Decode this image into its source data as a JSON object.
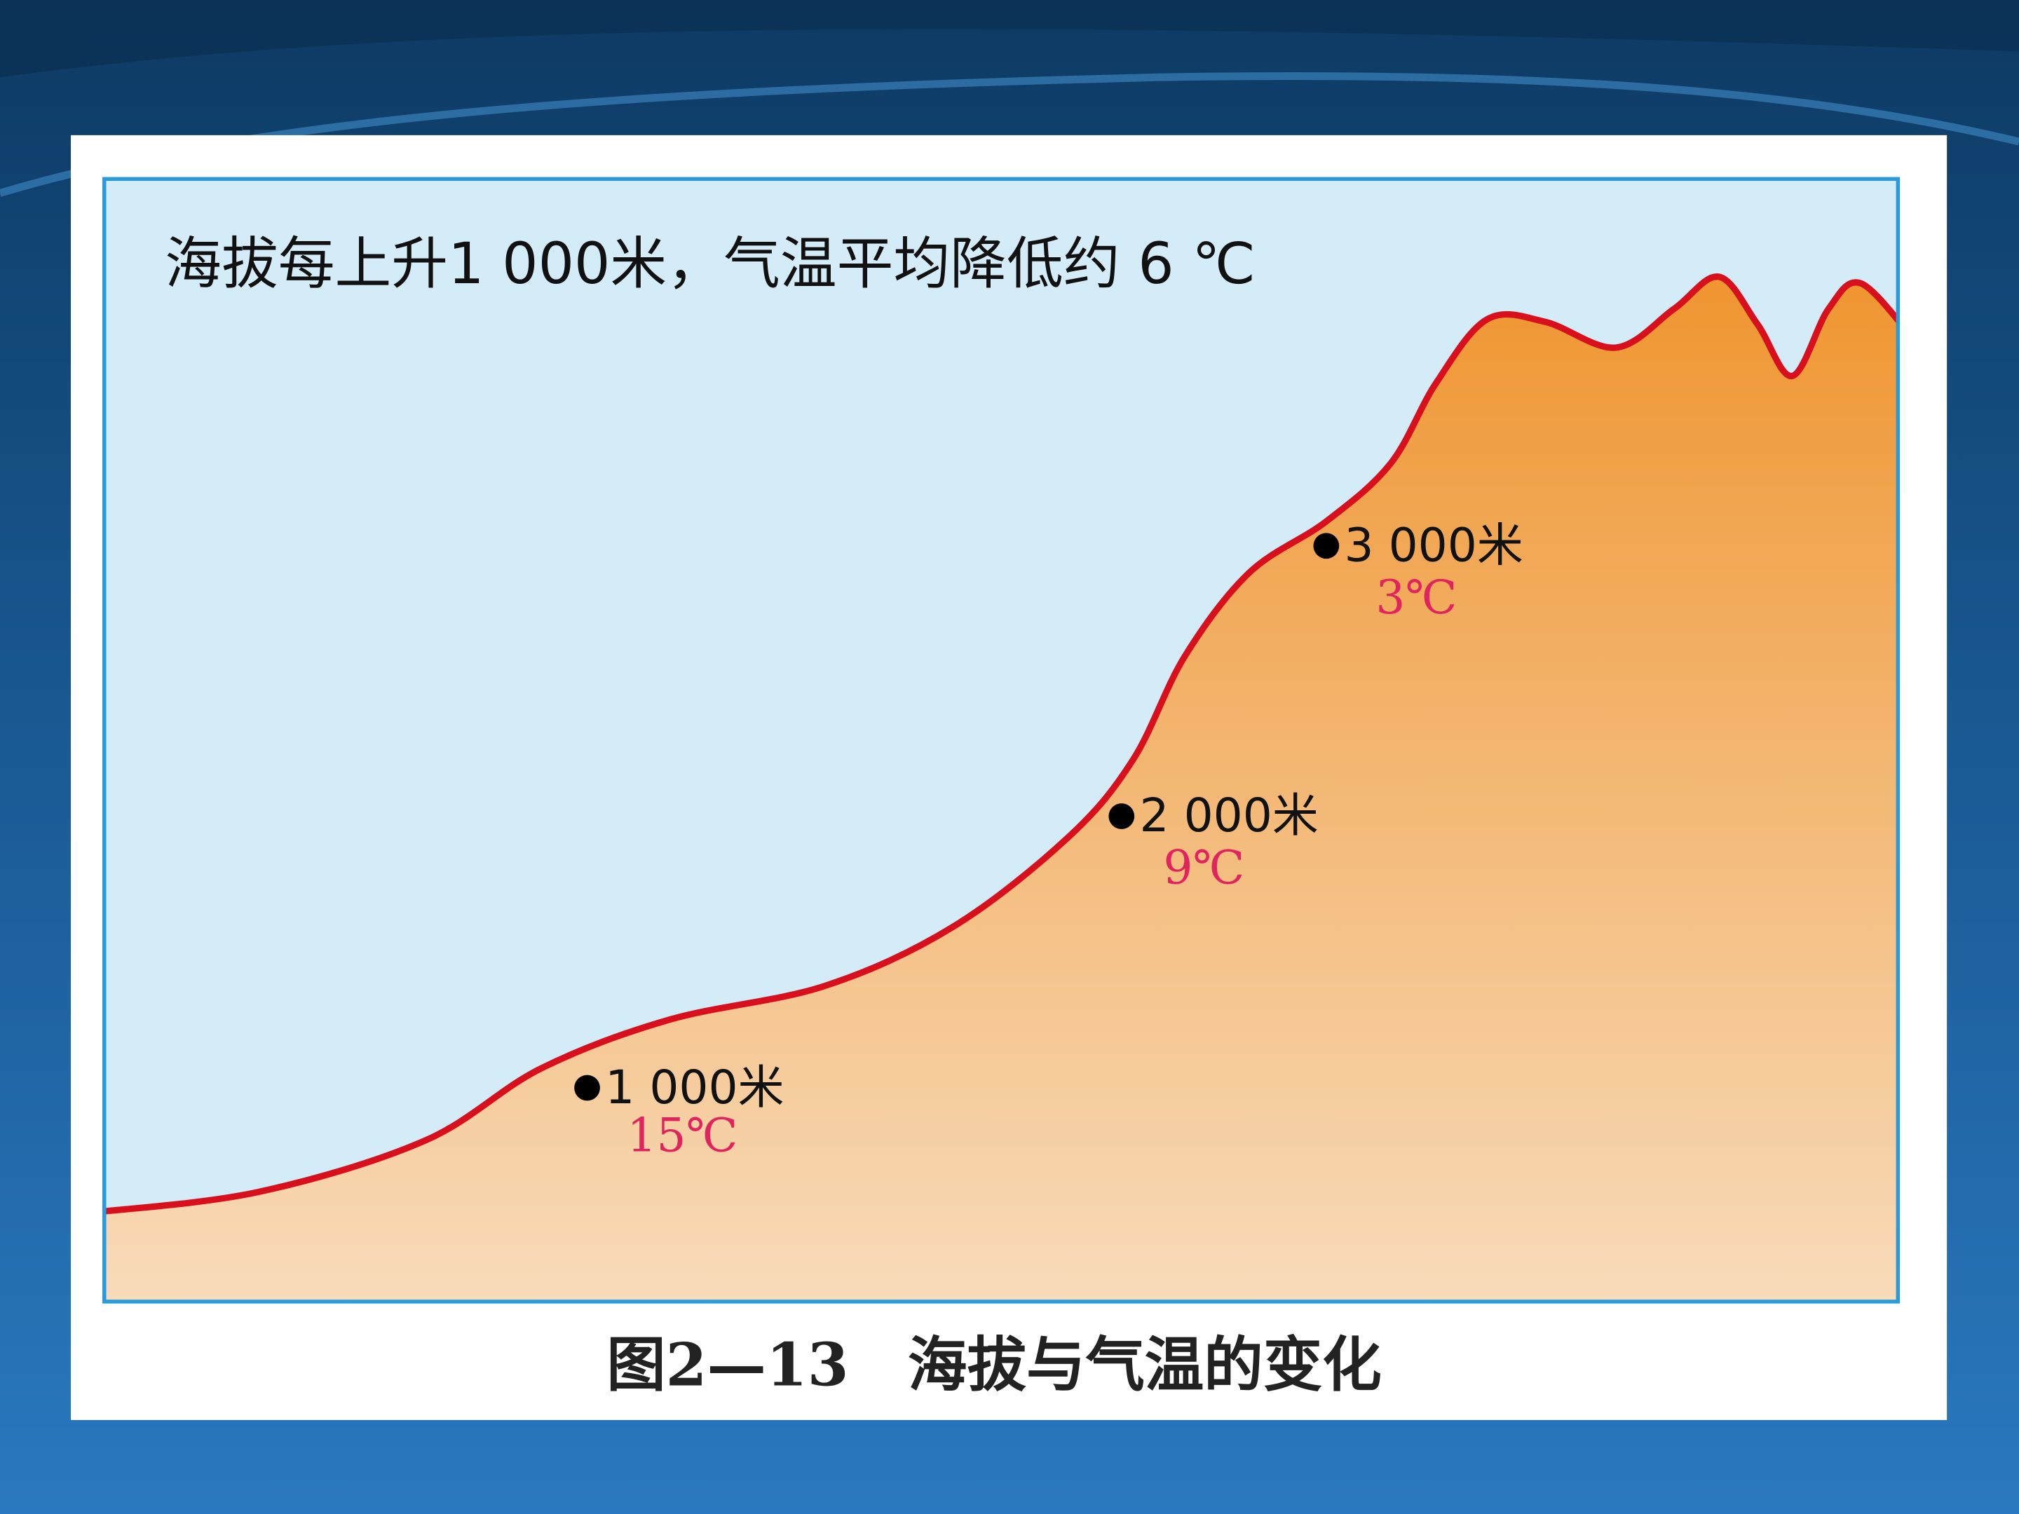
{
  "figure": {
    "title": "海拔每上升1 000米，气温平均降低约 6 ℃",
    "points": [
      {
        "altitude": "1 000米",
        "temperature": "15℃"
      },
      {
        "altitude": "2 000米",
        "temperature": "9℃"
      },
      {
        "altitude": "3 000米",
        "temperature": "3℃"
      }
    ],
    "caption": "图2—13　海拔与气温的变化"
  }
}
